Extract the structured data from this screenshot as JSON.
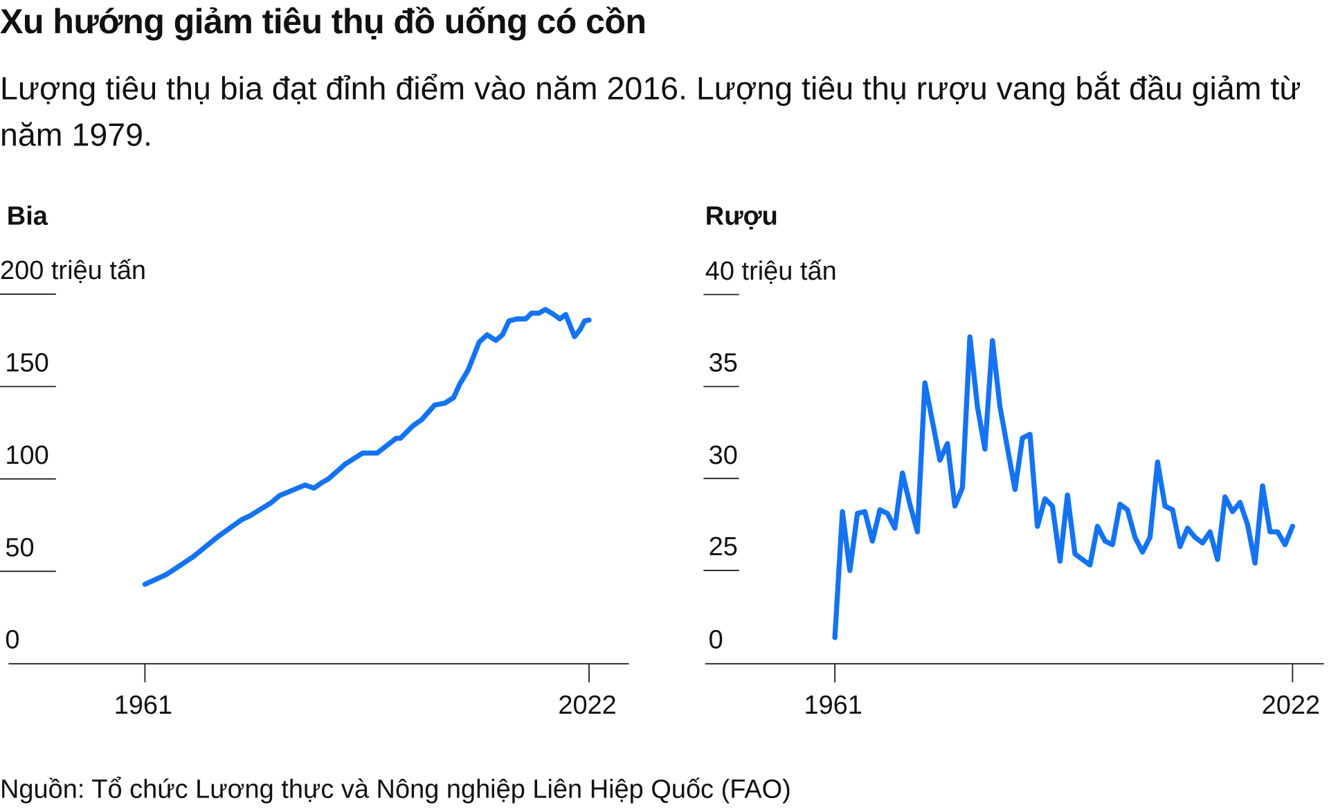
{
  "title": "Xu hướng giảm tiêu thụ đồ uống có cồn",
  "subtitle": "Lượng tiêu thụ bia đạt đỉnh điểm vào năm 2016. Lượng tiêu thụ rượu vang bắt đầu giảm từ năm 1979.",
  "source": "Nguồn: Tổ chức Lương thực và Nông nghiệp Liên Hiệp Quốc (FAO)",
  "colors": {
    "line": "#1473f2",
    "axis": "#222222"
  },
  "chart_data": [
    {
      "type": "line",
      "title": "Bia",
      "ylabel": "triệu tấn",
      "y_ticks": [
        "200 triệu tấn",
        "150",
        "100",
        "50",
        "0"
      ],
      "y_tick_values": [
        200,
        150,
        100,
        50,
        0
      ],
      "x_ticks": [
        "1961",
        "2022"
      ],
      "ylim": [
        0,
        200
      ],
      "xlim": [
        1961,
        2022
      ],
      "series": [
        {
          "name": "Bia",
          "x": [
            1961,
            1964,
            1967.6,
            1971,
            1974.3,
            1975.4,
            1978.3,
            1979.5,
            1983,
            1984.2,
            1985.3,
            1986.2,
            1988.5,
            1990.9,
            1992.9,
            1995.5,
            1996.1,
            1997.8,
            1999,
            2000.8,
            2002.2,
            2003.4,
            2004.2,
            2005.4,
            2006.9,
            2008,
            2009.2,
            2010.1,
            2011,
            2012.1,
            2013.3,
            2014.1,
            2015.1,
            2016,
            2017,
            2018,
            2018.8,
            2020,
            2020.8,
            2021.4,
            2022
          ],
          "values": [
            43,
            48.4,
            57.8,
            68.7,
            78,
            80,
            87,
            91,
            96.7,
            95,
            98,
            100,
            108,
            114,
            114,
            122,
            122,
            128.7,
            132,
            140,
            141,
            144,
            151,
            159,
            174,
            178,
            175,
            178,
            185.5,
            186.6,
            186.6,
            189.7,
            189.7,
            191.7,
            189.4,
            186.6,
            189,
            177,
            181,
            185.5,
            186
          ]
        }
      ]
    },
    {
      "type": "line",
      "title": "Rượu",
      "ylabel": "triệu tấn",
      "y_ticks": [
        "40 triệu tấn",
        "35",
        "30",
        "25",
        "0"
      ],
      "y_tick_values": [
        40,
        35,
        30,
        25,
        0
      ],
      "x_ticks": [
        "1961",
        "2022"
      ],
      "ylim": [
        0,
        40
      ],
      "axis_break": [
        0,
        25
      ],
      "xlim": [
        1961,
        2022
      ],
      "series": [
        {
          "name": "Rượu",
          "x": [
            1961,
            1962,
            1963,
            1964,
            1965,
            1966,
            1967,
            1968,
            1969,
            1970,
            1971,
            1972,
            1973,
            1974,
            1975,
            1976,
            1977,
            1978,
            1979,
            1980,
            1981,
            1982,
            1983,
            1985,
            1986,
            1987,
            1988,
            1989,
            1990,
            1991,
            1992,
            1993,
            1994,
            1995,
            1996,
            1997,
            1998,
            1999,
            2000,
            2001,
            2002,
            2003,
            2004,
            2005,
            2006,
            2007,
            2008,
            2009,
            2010,
            2011,
            2012,
            2013,
            2014,
            2015,
            2016,
            2017,
            2018,
            2019,
            2020,
            2021,
            2022
          ],
          "values": [
            7,
            28.2,
            25.0,
            28.1,
            28.2,
            26.6,
            28.3,
            28.1,
            27.3,
            30.3,
            28.6,
            27.1,
            35.2,
            33.1,
            31.0,
            31.9,
            28.5,
            29.5,
            37.7,
            33.9,
            31.6,
            37.5,
            33.9,
            29.4,
            32.2,
            32.4,
            27.4,
            28.9,
            28.5,
            25.5,
            29.1,
            25.9,
            25.6,
            25.3,
            27.4,
            26.6,
            26.4,
            28.6,
            28.3,
            26.8,
            26.0,
            26.8,
            30.9,
            28.5,
            28.3,
            26.3,
            27.3,
            26.8,
            26.5,
            27.1,
            25.6,
            29.0,
            28.2,
            28.7,
            27.5,
            25.4,
            29.6,
            27.1,
            27.1,
            26.4,
            27.4
          ]
        }
      ]
    }
  ]
}
